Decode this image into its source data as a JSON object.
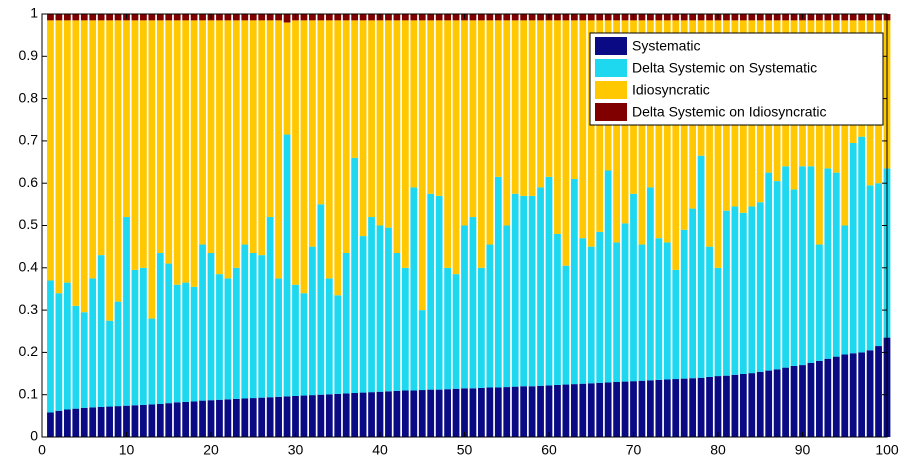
{
  "chart_data": {
    "type": "bar",
    "stacked": true,
    "x": [
      1,
      2,
      3,
      4,
      5,
      6,
      7,
      8,
      9,
      10,
      11,
      12,
      13,
      14,
      15,
      16,
      17,
      18,
      19,
      20,
      21,
      22,
      23,
      24,
      25,
      26,
      27,
      28,
      29,
      30,
      31,
      32,
      33,
      34,
      35,
      36,
      37,
      38,
      39,
      40,
      41,
      42,
      43,
      44,
      45,
      46,
      47,
      48,
      49,
      50,
      51,
      52,
      53,
      54,
      55,
      56,
      57,
      58,
      59,
      60,
      61,
      62,
      63,
      64,
      65,
      66,
      67,
      68,
      69,
      70,
      71,
      72,
      73,
      74,
      75,
      76,
      77,
      78,
      79,
      80,
      81,
      82,
      83,
      84,
      85,
      86,
      87,
      88,
      89,
      90,
      91,
      92,
      93,
      94,
      95,
      96,
      97,
      98,
      99,
      100
    ],
    "series": [
      {
        "name": "Systematic",
        "color": "#0a0a85",
        "values": [
          0.058,
          0.062,
          0.065,
          0.067,
          0.069,
          0.07,
          0.071,
          0.072,
          0.073,
          0.074,
          0.075,
          0.076,
          0.077,
          0.078,
          0.08,
          0.082,
          0.083,
          0.084,
          0.086,
          0.087,
          0.088,
          0.089,
          0.09,
          0.091,
          0.092,
          0.093,
          0.094,
          0.095,
          0.096,
          0.097,
          0.098,
          0.099,
          0.1,
          0.101,
          0.102,
          0.103,
          0.104,
          0.105,
          0.106,
          0.107,
          0.108,
          0.109,
          0.11,
          0.11,
          0.111,
          0.112,
          0.112,
          0.113,
          0.114,
          0.115,
          0.115,
          0.116,
          0.117,
          0.117,
          0.118,
          0.119,
          0.12,
          0.12,
          0.121,
          0.122,
          0.123,
          0.124,
          0.125,
          0.126,
          0.127,
          0.128,
          0.129,
          0.13,
          0.131,
          0.132,
          0.133,
          0.134,
          0.135,
          0.136,
          0.137,
          0.138,
          0.139,
          0.14,
          0.142,
          0.144,
          0.145,
          0.147,
          0.149,
          0.151,
          0.154,
          0.157,
          0.16,
          0.164,
          0.168,
          0.17,
          0.175,
          0.18,
          0.185,
          0.19,
          0.195,
          0.198,
          0.2,
          0.205,
          0.215,
          0.235
        ]
      },
      {
        "name": "Delta Systemic on Systematic",
        "color": "#1ed8f0",
        "values": [
          0.312,
          0.278,
          0.3,
          0.243,
          0.226,
          0.305,
          0.359,
          0.203,
          0.247,
          0.446,
          0.32,
          0.324,
          0.203,
          0.357,
          0.33,
          0.278,
          0.282,
          0.271,
          0.369,
          0.348,
          0.297,
          0.286,
          0.31,
          0.364,
          0.343,
          0.337,
          0.426,
          0.28,
          0.619,
          0.263,
          0.242,
          0.351,
          0.45,
          0.274,
          0.233,
          0.332,
          0.556,
          0.37,
          0.414,
          0.393,
          0.387,
          0.326,
          0.29,
          0.48,
          0.189,
          0.463,
          0.458,
          0.287,
          0.271,
          0.385,
          0.405,
          0.284,
          0.338,
          0.498,
          0.382,
          0.456,
          0.45,
          0.45,
          0.469,
          0.493,
          0.357,
          0.281,
          0.485,
          0.344,
          0.323,
          0.357,
          0.501,
          0.33,
          0.374,
          0.443,
          0.322,
          0.456,
          0.335,
          0.324,
          0.258,
          0.352,
          0.401,
          0.525,
          0.308,
          0.256,
          0.39,
          0.398,
          0.381,
          0.394,
          0.401,
          0.468,
          0.445,
          0.476,
          0.417,
          0.47,
          0.465,
          0.275,
          0.45,
          0.435,
          0.305,
          0.497,
          0.51,
          0.39,
          0.385,
          0.4
        ]
      },
      {
        "name": "Idiosyncratic",
        "color": "#ffc800",
        "values": [
          0.615,
          0.645,
          0.62,
          0.675,
          0.69,
          0.61,
          0.555,
          0.71,
          0.665,
          0.465,
          0.59,
          0.585,
          0.705,
          0.55,
          0.575,
          0.625,
          0.62,
          0.63,
          0.53,
          0.55,
          0.6,
          0.61,
          0.585,
          0.53,
          0.55,
          0.555,
          0.465,
          0.61,
          0.265,
          0.625,
          0.645,
          0.535,
          0.435,
          0.61,
          0.65,
          0.55,
          0.325,
          0.51,
          0.465,
          0.485,
          0.49,
          0.55,
          0.585,
          0.395,
          0.685,
          0.41,
          0.415,
          0.585,
          0.6,
          0.485,
          0.465,
          0.585,
          0.53,
          0.37,
          0.485,
          0.41,
          0.415,
          0.415,
          0.395,
          0.37,
          0.505,
          0.58,
          0.375,
          0.515,
          0.535,
          0.5,
          0.355,
          0.525,
          0.48,
          0.41,
          0.53,
          0.395,
          0.515,
          0.525,
          0.59,
          0.495,
          0.445,
          0.32,
          0.535,
          0.585,
          0.45,
          0.44,
          0.455,
          0.44,
          0.43,
          0.36,
          0.38,
          0.345,
          0.4,
          0.345,
          0.345,
          0.53,
          0.35,
          0.36,
          0.485,
          0.29,
          0.275,
          0.39,
          0.385,
          0.35
        ]
      },
      {
        "name": "Delta Systemic on Idiosyncratic",
        "color": "#800000",
        "values": [
          0.015,
          0.015,
          0.015,
          0.015,
          0.015,
          0.015,
          0.015,
          0.015,
          0.015,
          0.015,
          0.015,
          0.015,
          0.015,
          0.015,
          0.015,
          0.015,
          0.015,
          0.015,
          0.015,
          0.015,
          0.015,
          0.015,
          0.015,
          0.015,
          0.015,
          0.015,
          0.015,
          0.015,
          0.02,
          0.015,
          0.015,
          0.015,
          0.015,
          0.015,
          0.015,
          0.015,
          0.015,
          0.015,
          0.015,
          0.015,
          0.015,
          0.015,
          0.015,
          0.015,
          0.015,
          0.015,
          0.015,
          0.015,
          0.015,
          0.015,
          0.015,
          0.015,
          0.015,
          0.015,
          0.015,
          0.015,
          0.015,
          0.015,
          0.015,
          0.015,
          0.015,
          0.015,
          0.015,
          0.015,
          0.015,
          0.015,
          0.015,
          0.015,
          0.015,
          0.015,
          0.015,
          0.015,
          0.015,
          0.015,
          0.015,
          0.015,
          0.015,
          0.015,
          0.015,
          0.015,
          0.015,
          0.015,
          0.015,
          0.015,
          0.015,
          0.015,
          0.015,
          0.015,
          0.015,
          0.015,
          0.015,
          0.015,
          0.015,
          0.015,
          0.015,
          0.015,
          0.015,
          0.015,
          0.015,
          0.015
        ]
      }
    ],
    "xlim": [
      0,
      100
    ],
    "xticks": [
      0,
      10,
      20,
      30,
      40,
      50,
      60,
      70,
      80,
      90,
      100
    ],
    "ylim": [
      0,
      1
    ],
    "yticks": [
      0,
      0.1,
      0.2,
      0.3,
      0.4,
      0.5,
      0.6,
      0.7,
      0.8,
      0.9,
      1
    ],
    "legend": "upper right"
  }
}
